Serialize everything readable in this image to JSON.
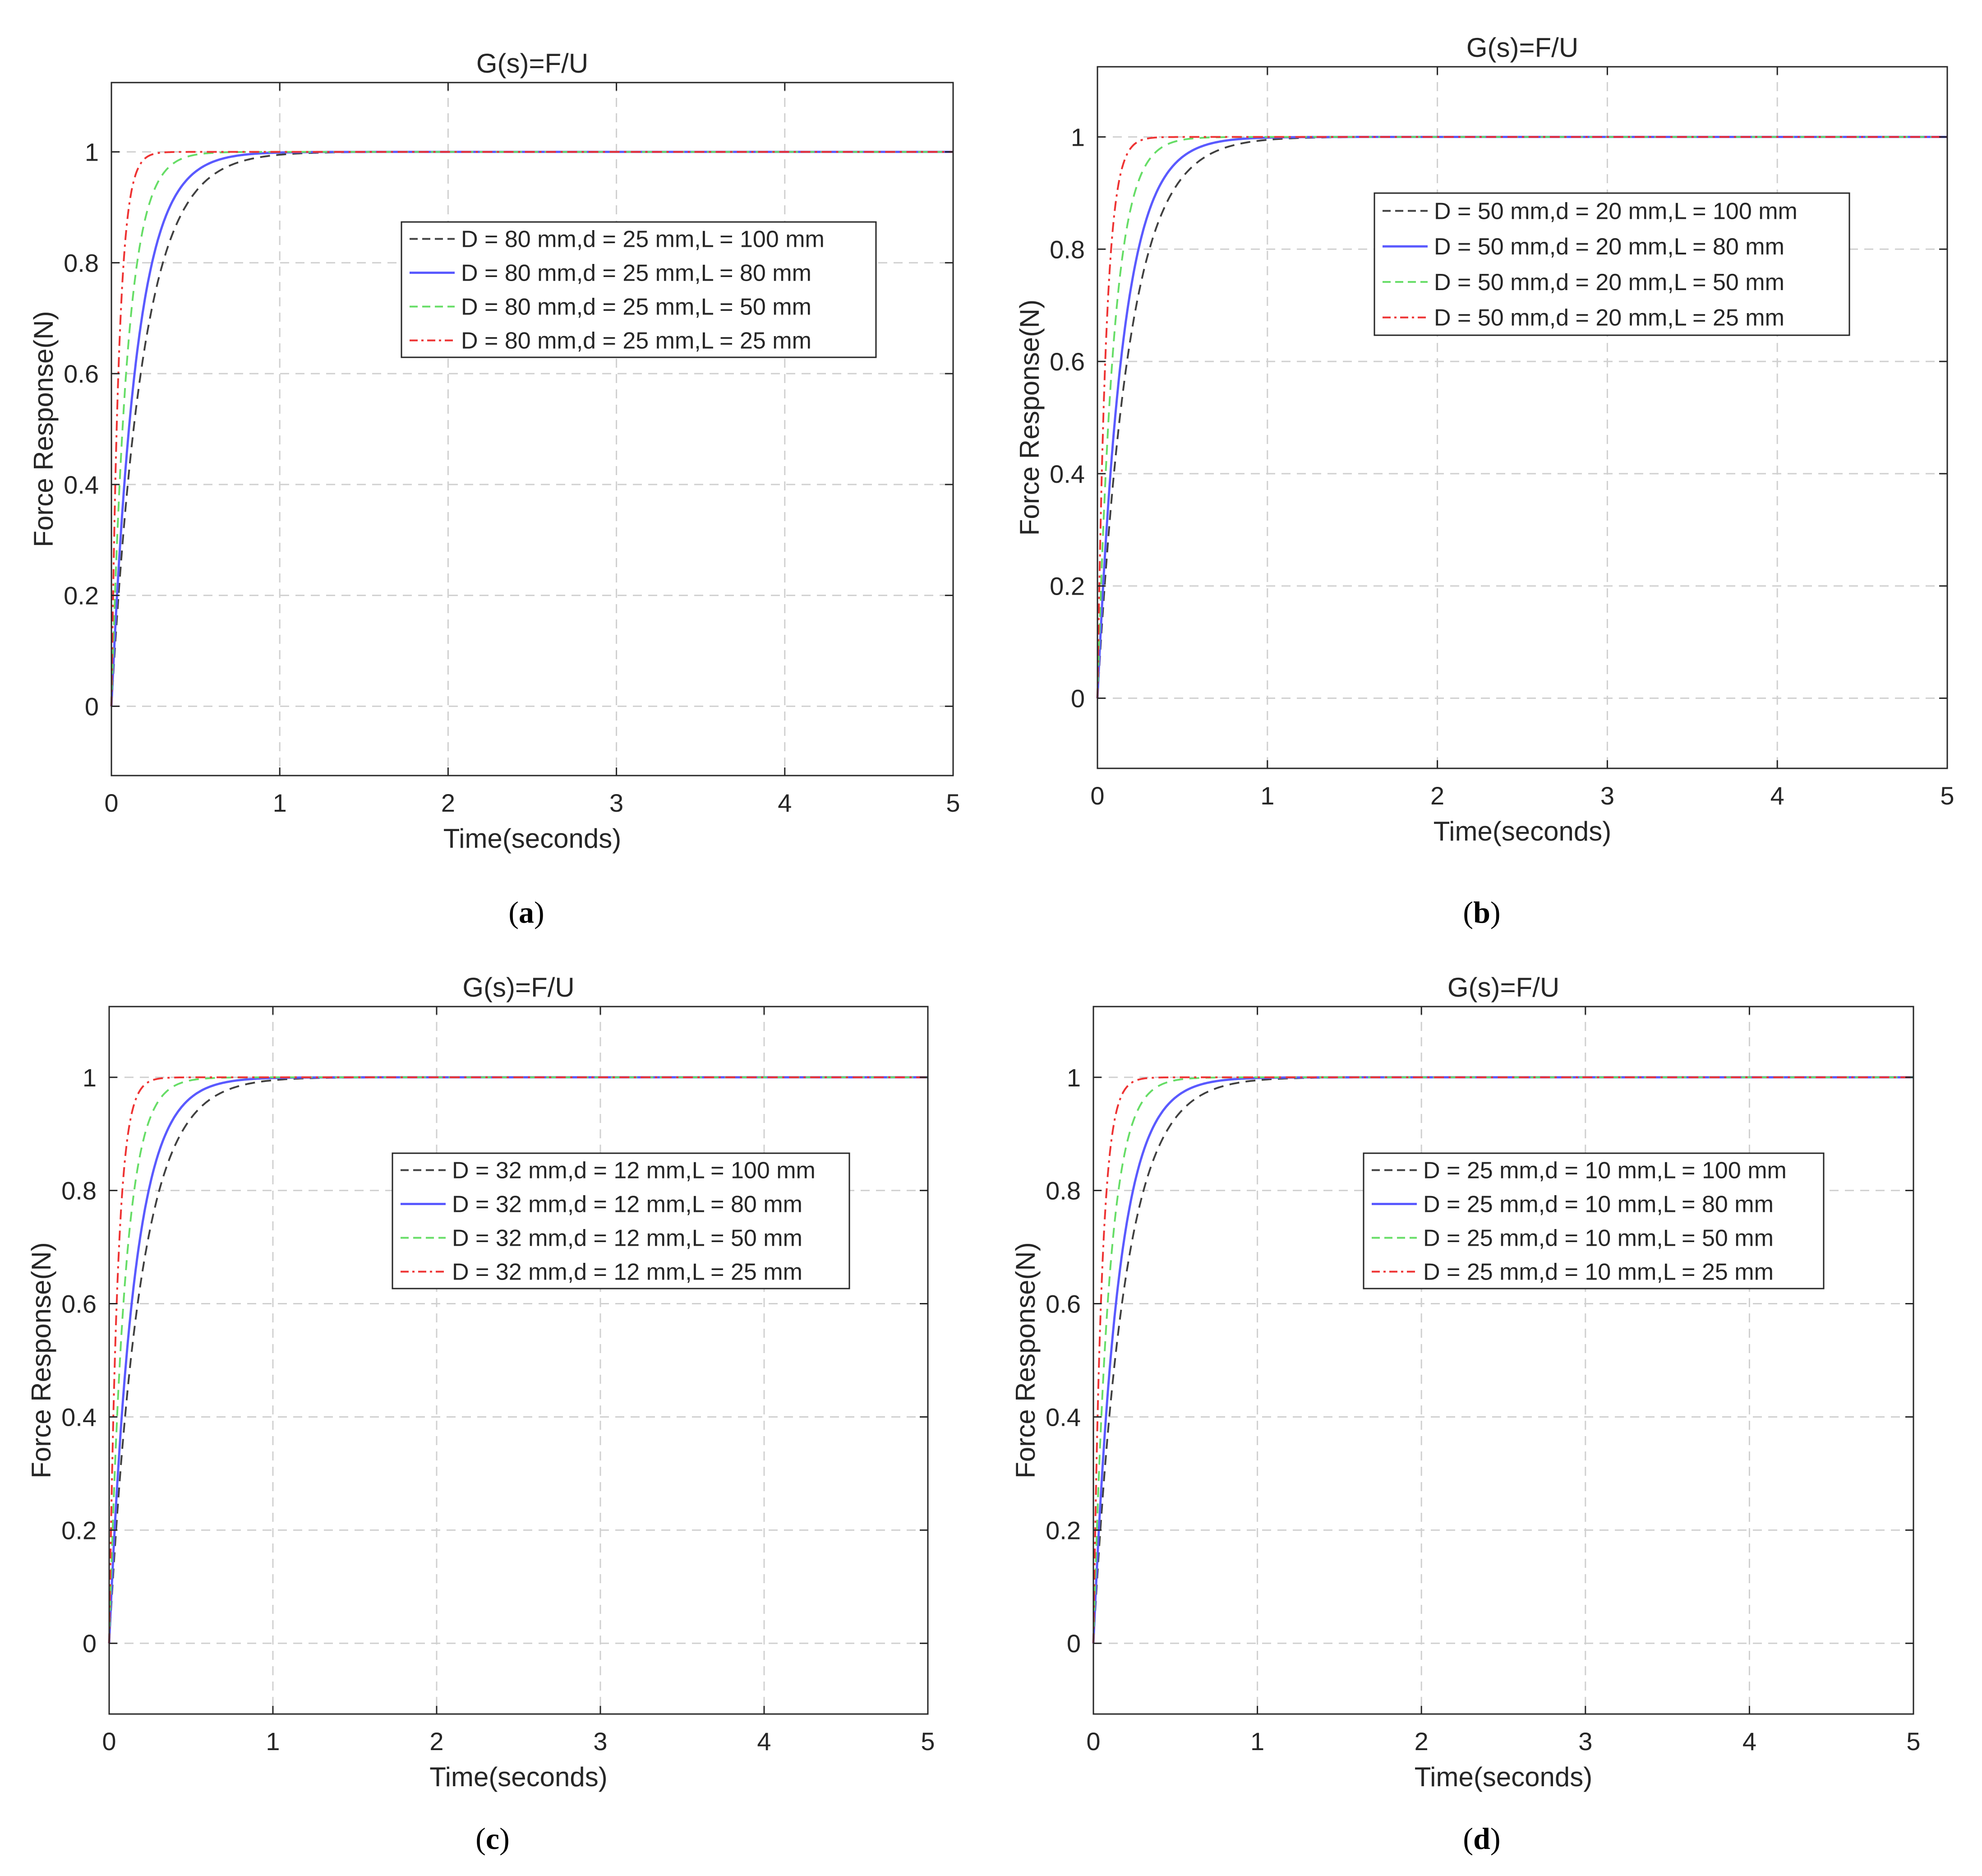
{
  "chart_data": [
    {
      "type": "line",
      "panel_label": "a",
      "title": "G(s)=F/U",
      "xlabel": "Time(seconds)",
      "ylabel": "Force Response(N)",
      "xlim": [
        0,
        5
      ],
      "ylim": [
        -0.125,
        1.125
      ],
      "xticks": [
        0,
        1,
        2,
        3,
        4,
        5
      ],
      "yticks": [
        0,
        0.2,
        0.4,
        0.6,
        0.8,
        1
      ],
      "grid": true,
      "legend_position": "center-right, upper",
      "series": [
        {
          "name": "D = 80 mm,d = 25 mm,L = 100 mm",
          "color": "#404040",
          "style": "dashed",
          "tau": 0.19
        },
        {
          "name": "D = 80 mm,d = 25 mm,L = 80 mm",
          "color": "#5a5aff",
          "style": "solid",
          "tau": 0.15
        },
        {
          "name": "D = 80 mm,d = 25 mm,L = 50 mm",
          "color": "#66dd66",
          "style": "dashed",
          "tau": 0.095
        },
        {
          "name": "D = 80 mm,d = 25 mm,L = 25 mm",
          "color": "#ee3333",
          "style": "dashdot",
          "tau": 0.045
        }
      ]
    },
    {
      "type": "line",
      "panel_label": "b",
      "title": "G(s)=F/U",
      "xlabel": "Time(seconds)",
      "ylabel": "Force Response(N)",
      "xlim": [
        0,
        5
      ],
      "ylim": [
        -0.125,
        1.125
      ],
      "xticks": [
        0,
        1,
        2,
        3,
        4,
        5
      ],
      "yticks": [
        0,
        0.2,
        0.4,
        0.6,
        0.8,
        1
      ],
      "grid": true,
      "legend_position": "center-right, upper",
      "series": [
        {
          "name": "D = 50 mm,d = 20 mm,L = 100 mm",
          "color": "#404040",
          "style": "dashed",
          "tau": 0.19
        },
        {
          "name": "D = 50 mm,d = 20 mm,L = 80 mm",
          "color": "#5a5aff",
          "style": "solid",
          "tau": 0.15
        },
        {
          "name": "D = 50 mm,d = 20 mm,L = 50 mm",
          "color": "#66dd66",
          "style": "dashed",
          "tau": 0.095
        },
        {
          "name": "D = 50 mm,d = 20 mm,L = 25 mm",
          "color": "#ee3333",
          "style": "dashdot",
          "tau": 0.05
        }
      ]
    },
    {
      "type": "line",
      "panel_label": "c",
      "title": "G(s)=F/U",
      "xlabel": "Time(seconds)",
      "ylabel": "Force Response(N)",
      "xlim": [
        0,
        5
      ],
      "ylim": [
        -0.125,
        1.125
      ],
      "xticks": [
        0,
        1,
        2,
        3,
        4,
        5
      ],
      "yticks": [
        0,
        0.2,
        0.4,
        0.6,
        0.8,
        1
      ],
      "grid": true,
      "legend_position": "center-right, upper",
      "series": [
        {
          "name": "D = 32 mm,d = 12 mm,L = 100 mm",
          "color": "#404040",
          "style": "dashed",
          "tau": 0.19
        },
        {
          "name": "D = 32 mm,d = 12 mm,L = 80 mm",
          "color": "#5a5aff",
          "style": "solid",
          "tau": 0.15
        },
        {
          "name": "D = 32 mm,d = 12 mm,L = 50 mm",
          "color": "#66dd66",
          "style": "dashed",
          "tau": 0.095
        },
        {
          "name": "D = 32 mm,d = 12 mm,L = 25 mm",
          "color": "#ee3333",
          "style": "dashdot",
          "tau": 0.05
        }
      ]
    },
    {
      "type": "line",
      "panel_label": "d",
      "title": "G(s)=F/U",
      "xlabel": "Time(seconds)",
      "ylabel": "Force Response(N)",
      "xlim": [
        0,
        5
      ],
      "ylim": [
        -0.125,
        1.125
      ],
      "xticks": [
        0,
        1,
        2,
        3,
        4,
        5
      ],
      "yticks": [
        0,
        0.2,
        0.4,
        0.6,
        0.8,
        1
      ],
      "grid": true,
      "legend_position": "center-right, upper",
      "series": [
        {
          "name": "D = 25 mm,d = 10 mm,L = 100 mm",
          "color": "#404040",
          "style": "dashed",
          "tau": 0.19
        },
        {
          "name": "D = 25 mm,d = 10 mm,L = 80 mm",
          "color": "#5a5aff",
          "style": "solid",
          "tau": 0.15
        },
        {
          "name": "D = 25 mm,d = 10 mm,L = 50 mm",
          "color": "#66dd66",
          "style": "dashed",
          "tau": 0.095
        },
        {
          "name": "D = 25 mm,d = 10 mm,L = 25 mm",
          "color": "#ee3333",
          "style": "dashdot",
          "tau": 0.05
        }
      ]
    }
  ]
}
